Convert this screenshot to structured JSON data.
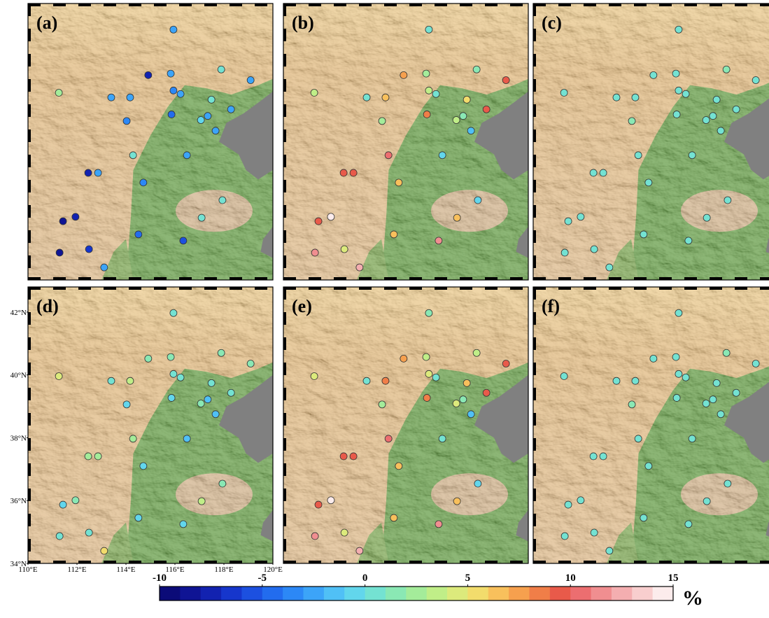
{
  "panels": [
    {
      "label": "(a)",
      "values": [
        -3,
        2,
        -8,
        -3,
        0.5,
        -3,
        -3,
        -3,
        -4,
        -3,
        0,
        -3,
        -4,
        -5,
        -3,
        -1,
        -3,
        0,
        -3,
        -8,
        -3,
        -4,
        0,
        -8,
        -9,
        0,
        -5,
        -6,
        -7,
        -9,
        -3
      ]
    },
    {
      "label": "(b)",
      "values": [
        0,
        3,
        7,
        2,
        1,
        9,
        0,
        6,
        3,
        0,
        5,
        9,
        2,
        8,
        1,
        3,
        -2,
        10,
        -1,
        9,
        9,
        6,
        -1,
        15,
        9,
        6,
        6,
        11,
        4,
        11,
        12
      ]
    },
    {
      "label": "(c)",
      "values": [
        0.5,
        0.5,
        0.5,
        0.5,
        1,
        0,
        0.5,
        0.5,
        0,
        0,
        0.5,
        0,
        1,
        0,
        0.5,
        0.5,
        0,
        0,
        0,
        0.5,
        0.5,
        0.5,
        0.5,
        0,
        0,
        0,
        0.5,
        0.5,
        0,
        0.5,
        0
      ]
    },
    {
      "label": "(d)",
      "values": [
        0.5,
        4,
        1,
        1,
        1,
        1,
        0,
        3,
        0,
        0,
        0,
        0,
        -1,
        -1,
        -2,
        1,
        -2,
        2,
        -2,
        2,
        2,
        -1,
        1,
        1,
        -1,
        3,
        -1,
        -1,
        0,
        0,
        5
      ]
    },
    {
      "label": "(e)",
      "values": [
        1,
        4,
        7,
        3,
        3,
        9,
        0,
        8,
        4,
        0,
        6,
        9,
        2,
        8,
        1,
        4,
        -2,
        10,
        0,
        9,
        9,
        6,
        -1,
        15,
        9,
        6,
        6,
        11,
        4,
        11,
        12
      ]
    },
    {
      "label": "(f)",
      "values": [
        0.5,
        0.5,
        0.5,
        0.5,
        1,
        0.5,
        0.5,
        0.5,
        0,
        0,
        0.5,
        0,
        1,
        0,
        0.5,
        0.5,
        0,
        0,
        0,
        0.5,
        0.5,
        0.5,
        0.5,
        0,
        0,
        0,
        0.5,
        0.5,
        0,
        0.5,
        0
      ]
    }
  ],
  "stations": {
    "lon": [
      115.94,
      111.26,
      114.91,
      115.83,
      117.89,
      119.09,
      113.4,
      114.17,
      115.94,
      116.23,
      117.49,
      118.29,
      114.03,
      115.86,
      117.34,
      117.06,
      117.66,
      114.29,
      116.49,
      112.46,
      112.86,
      114.71,
      117.94,
      111.94,
      111.43,
      117.09,
      114.51,
      116.34,
      112.49,
      111.29,
      113.11
    ],
    "lat": [
      41.97,
      39.96,
      40.52,
      40.57,
      40.7,
      40.36,
      39.81,
      39.81,
      40.03,
      39.92,
      39.74,
      39.43,
      39.06,
      39.27,
      39.22,
      39.09,
      38.75,
      37.97,
      37.97,
      37.41,
      37.41,
      37.1,
      36.54,
      36.01,
      35.87,
      35.98,
      35.45,
      35.25,
      34.98,
      34.87,
      34.4
    ]
  },
  "map": {
    "lon_range": [
      110,
      120
    ],
    "lat_range": [
      34,
      42.8
    ],
    "lon_ticks": [
      {
        "value": 110,
        "label": "110°E"
      },
      {
        "value": 112,
        "label": "112°E"
      },
      {
        "value": 114,
        "label": "114°E"
      },
      {
        "value": 116,
        "label": "116°E"
      },
      {
        "value": 118,
        "label": "118°E"
      },
      {
        "value": 120,
        "label": "120°E"
      }
    ],
    "lat_ticks": [
      {
        "value": 34,
        "label": "34°N"
      },
      {
        "value": 36,
        "label": "36°N"
      },
      {
        "value": 38,
        "label": "38°N"
      },
      {
        "value": 40,
        "label": "40°N"
      },
      {
        "value": 42,
        "label": "42°N"
      }
    ]
  },
  "colorbar": {
    "range": [
      -10,
      15
    ],
    "ticks": [
      -10,
      -5,
      0,
      5,
      10,
      15
    ],
    "unit": "%",
    "colors": [
      "#0b0b78",
      "#0f1494",
      "#1222b0",
      "#1636cc",
      "#1c50e0",
      "#226cee",
      "#2c88f6",
      "#3ca4f8",
      "#50c0f6",
      "#62d6ec",
      "#74e2d2",
      "#8ae8b4",
      "#a4ec9a",
      "#c0ee88",
      "#dcea7c",
      "#f2dc6c",
      "#f8c05c",
      "#f6a04e",
      "#f07e48",
      "#e85a4a",
      "#ec6e70",
      "#f08e90",
      "#f4aeb0",
      "#f8cece",
      "#fcecec"
    ]
  }
}
